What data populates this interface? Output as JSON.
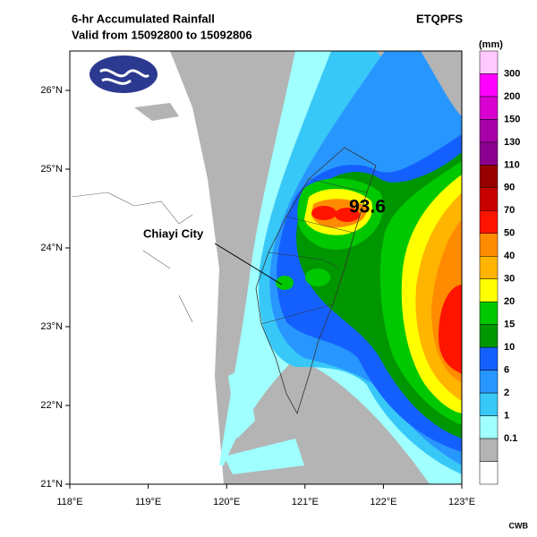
{
  "title": "6-hr Accumulated Rainfall",
  "subtitle": "Valid from 15092800 to 15092806",
  "product": "ETQPFS",
  "credit": "CWB",
  "map": {
    "xlim": [
      118,
      123
    ],
    "ylim": [
      21,
      26.5
    ],
    "xticks": [
      {
        "value": 118,
        "label": "118°E"
      },
      {
        "value": 119,
        "label": "119°E"
      },
      {
        "value": 120,
        "label": "120°E"
      },
      {
        "value": 121,
        "label": "121°E"
      },
      {
        "value": 122,
        "label": "122°E"
      },
      {
        "value": 123,
        "label": "123°E"
      }
    ],
    "yticks": [
      {
        "value": 21,
        "label": "21°N"
      },
      {
        "value": 22,
        "label": "22°N"
      },
      {
        "value": 23,
        "label": "23°N"
      },
      {
        "value": 24,
        "label": "24°N"
      },
      {
        "value": 25,
        "label": "25°N"
      },
      {
        "value": 26,
        "label": "26°N"
      }
    ],
    "city_label": "Chiayi City",
    "max_value": 93.6
  },
  "legend": {
    "unit": "(mm)",
    "levels": [
      "300",
      "200",
      "150",
      "130",
      "110",
      "90",
      "70",
      "50",
      "40",
      "30",
      "20",
      "15",
      "10",
      "6",
      "2",
      "1",
      "0.1"
    ],
    "colors": [
      "#ffc8ff",
      "#ff00ff",
      "#d800d0",
      "#a800a8",
      "#8c0090",
      "#960000",
      "#c80000",
      "#ff1400",
      "#ff8c00",
      "#ffb400",
      "#ffff00",
      "#00c800",
      "#009600",
      "#1460ff",
      "#2896ff",
      "#38c8f8",
      "#a0ffff",
      "#b4b4b4",
      "#ffffff"
    ]
  }
}
